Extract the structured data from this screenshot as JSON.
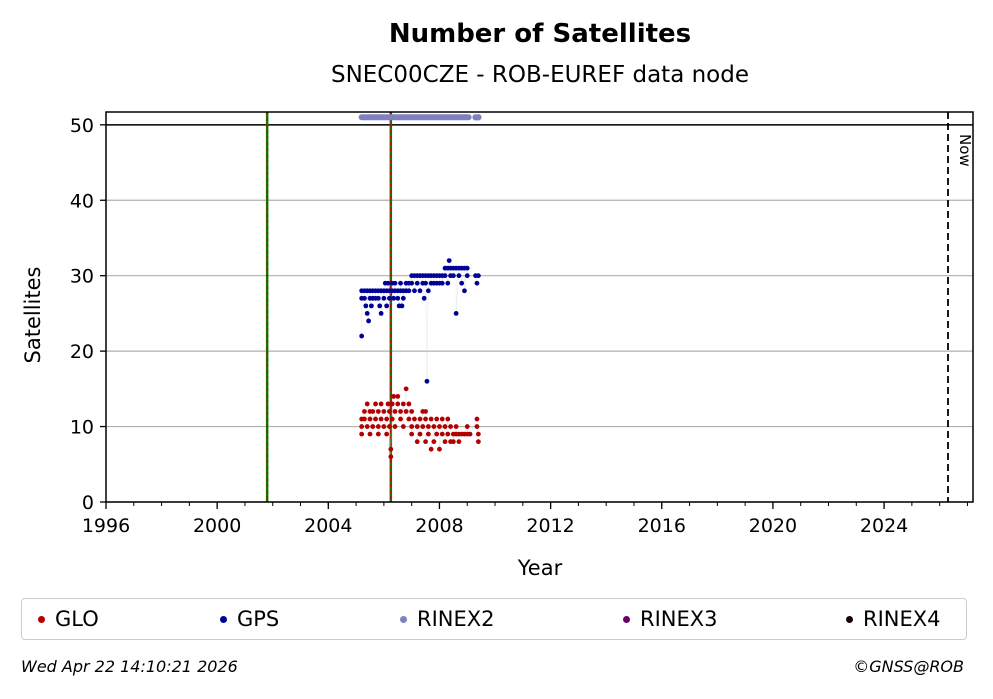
{
  "chart_data": {
    "type": "scatter",
    "title": "Number of Satellites",
    "subtitle": "SNEC00CZE - ROB-EUREF data node",
    "xlabel": "Year",
    "ylabel": "Satellites",
    "xlim": [
      1996,
      2027.2
    ],
    "ylim": [
      0,
      51.7
    ],
    "xticks": [
      1996,
      2000,
      2004,
      2008,
      2012,
      2016,
      2020,
      2024
    ],
    "yticks": [
      0,
      10,
      20,
      30,
      40,
      50
    ],
    "grid": "horizontal",
    "hline_at": 50,
    "event_lines": [
      2001.8,
      2006.25
    ],
    "now_line": {
      "x": 2026.3,
      "label": "Now"
    },
    "series": [
      {
        "name": "GLO",
        "color": "#b30000",
        "points": [
          [
            2005.2,
            11
          ],
          [
            2005.2,
            10
          ],
          [
            2005.2,
            9
          ],
          [
            2005.3,
            12
          ],
          [
            2005.3,
            11
          ],
          [
            2005.4,
            10
          ],
          [
            2005.4,
            13
          ],
          [
            2005.5,
            12
          ],
          [
            2005.5,
            11
          ],
          [
            2005.5,
            9
          ],
          [
            2005.6,
            12
          ],
          [
            2005.6,
            10
          ],
          [
            2005.7,
            13
          ],
          [
            2005.7,
            11
          ],
          [
            2005.8,
            12
          ],
          [
            2005.8,
            10
          ],
          [
            2005.8,
            9
          ],
          [
            2005.9,
            11
          ],
          [
            2005.9,
            13
          ],
          [
            2006.0,
            12
          ],
          [
            2006.0,
            10
          ],
          [
            2006.1,
            11
          ],
          [
            2006.1,
            9
          ],
          [
            2006.15,
            13
          ],
          [
            2006.2,
            12
          ],
          [
            2006.2,
            10
          ],
          [
            2006.25,
            7
          ],
          [
            2006.25,
            6
          ],
          [
            2006.3,
            13
          ],
          [
            2006.3,
            11
          ],
          [
            2006.35,
            14
          ],
          [
            2006.4,
            12
          ],
          [
            2006.4,
            10
          ],
          [
            2006.5,
            14
          ],
          [
            2006.5,
            13
          ],
          [
            2006.6,
            12
          ],
          [
            2006.6,
            11
          ],
          [
            2006.7,
            13
          ],
          [
            2006.7,
            10
          ],
          [
            2006.8,
            15
          ],
          [
            2006.8,
            12
          ],
          [
            2006.9,
            13
          ],
          [
            2006.9,
            11
          ],
          [
            2007.0,
            12
          ],
          [
            2007.0,
            10
          ],
          [
            2007.0,
            9
          ],
          [
            2007.1,
            11
          ],
          [
            2007.2,
            10
          ],
          [
            2007.2,
            8
          ],
          [
            2007.3,
            11
          ],
          [
            2007.3,
            9
          ],
          [
            2007.4,
            12
          ],
          [
            2007.4,
            10
          ],
          [
            2007.5,
            12
          ],
          [
            2007.5,
            11
          ],
          [
            2007.5,
            8
          ],
          [
            2007.6,
            10
          ],
          [
            2007.6,
            9
          ],
          [
            2007.7,
            11
          ],
          [
            2007.7,
            7
          ],
          [
            2007.8,
            10
          ],
          [
            2007.8,
            8
          ],
          [
            2007.9,
            11
          ],
          [
            2007.9,
            9
          ],
          [
            2008.0,
            10
          ],
          [
            2008.0,
            7
          ],
          [
            2008.1,
            11
          ],
          [
            2008.1,
            9
          ],
          [
            2008.2,
            10
          ],
          [
            2008.2,
            8
          ],
          [
            2008.3,
            11
          ],
          [
            2008.3,
            9
          ],
          [
            2008.4,
            10
          ],
          [
            2008.4,
            8
          ],
          [
            2008.5,
            9
          ],
          [
            2008.5,
            8
          ],
          [
            2008.6,
            10
          ],
          [
            2008.6,
            9
          ],
          [
            2008.7,
            9
          ],
          [
            2008.7,
            8
          ],
          [
            2008.8,
            9
          ],
          [
            2008.9,
            9
          ],
          [
            2009.0,
            10
          ],
          [
            2009.0,
            9
          ],
          [
            2009.1,
            9
          ],
          [
            2009.35,
            11
          ],
          [
            2009.35,
            10
          ],
          [
            2009.4,
            9
          ],
          [
            2009.4,
            8
          ]
        ]
      },
      {
        "name": "GPS",
        "color": "#000099",
        "points": [
          [
            2005.2,
            22
          ],
          [
            2005.2,
            28
          ],
          [
            2005.2,
            27
          ],
          [
            2005.3,
            28
          ],
          [
            2005.3,
            27
          ],
          [
            2005.35,
            26
          ],
          [
            2005.4,
            28
          ],
          [
            2005.4,
            25
          ],
          [
            2005.45,
            24
          ],
          [
            2005.5,
            28
          ],
          [
            2005.5,
            27
          ],
          [
            2005.55,
            26
          ],
          [
            2005.6,
            28
          ],
          [
            2005.6,
            27
          ],
          [
            2005.7,
            28
          ],
          [
            2005.7,
            27
          ],
          [
            2005.8,
            28
          ],
          [
            2005.8,
            27
          ],
          [
            2005.85,
            26
          ],
          [
            2005.9,
            28
          ],
          [
            2005.9,
            25
          ],
          [
            2006.0,
            28
          ],
          [
            2006.0,
            27
          ],
          [
            2006.05,
            29
          ],
          [
            2006.1,
            28
          ],
          [
            2006.1,
            26
          ],
          [
            2006.15,
            29
          ],
          [
            2006.2,
            28
          ],
          [
            2006.2,
            27
          ],
          [
            2006.3,
            29
          ],
          [
            2006.3,
            28
          ],
          [
            2006.35,
            27
          ],
          [
            2006.4,
            29
          ],
          [
            2006.4,
            28
          ],
          [
            2006.5,
            28
          ],
          [
            2006.5,
            27
          ],
          [
            2006.55,
            26
          ],
          [
            2006.6,
            29
          ],
          [
            2006.6,
            28
          ],
          [
            2006.65,
            26
          ],
          [
            2006.7,
            28
          ],
          [
            2006.7,
            27
          ],
          [
            2006.8,
            29
          ],
          [
            2006.8,
            28
          ],
          [
            2006.9,
            29
          ],
          [
            2006.9,
            28
          ],
          [
            2007.0,
            30
          ],
          [
            2007.0,
            29
          ],
          [
            2007.1,
            30
          ],
          [
            2007.1,
            28
          ],
          [
            2007.2,
            30
          ],
          [
            2007.2,
            29
          ],
          [
            2007.3,
            30
          ],
          [
            2007.3,
            28
          ],
          [
            2007.4,
            30
          ],
          [
            2007.4,
            29
          ],
          [
            2007.45,
            27
          ],
          [
            2007.5,
            30
          ],
          [
            2007.5,
            29
          ],
          [
            2007.55,
            16
          ],
          [
            2007.6,
            30
          ],
          [
            2007.6,
            28
          ],
          [
            2007.7,
            30
          ],
          [
            2007.7,
            29
          ],
          [
            2007.8,
            30
          ],
          [
            2007.8,
            29
          ],
          [
            2007.9,
            30
          ],
          [
            2007.9,
            29
          ],
          [
            2008.0,
            30
          ],
          [
            2008.0,
            29
          ],
          [
            2008.1,
            30
          ],
          [
            2008.1,
            29
          ],
          [
            2008.2,
            31
          ],
          [
            2008.2,
            30
          ],
          [
            2008.3,
            31
          ],
          [
            2008.3,
            29
          ],
          [
            2008.35,
            32
          ],
          [
            2008.4,
            31
          ],
          [
            2008.4,
            30
          ],
          [
            2008.5,
            31
          ],
          [
            2008.5,
            30
          ],
          [
            2008.6,
            31
          ],
          [
            2008.6,
            25
          ],
          [
            2008.7,
            31
          ],
          [
            2008.7,
            30
          ],
          [
            2008.8,
            31
          ],
          [
            2008.8,
            29
          ],
          [
            2008.9,
            31
          ],
          [
            2008.9,
            28
          ],
          [
            2009.0,
            31
          ],
          [
            2009.0,
            30
          ],
          [
            2009.3,
            30
          ],
          [
            2009.35,
            29
          ],
          [
            2009.4,
            30
          ]
        ]
      },
      {
        "name": "RINEX2",
        "color": "#8080c0",
        "y": 51,
        "ranges": [
          [
            2005.2,
            2009.05
          ]
        ],
        "extra": [
          2009.3,
          2009.4
        ]
      }
    ],
    "legend": [
      {
        "label": "GLO",
        "color": "#b30000"
      },
      {
        "label": "GPS",
        "color": "#000099"
      },
      {
        "label": "RINEX2",
        "color": "#8080c0"
      },
      {
        "label": "RINEX3",
        "color": "#660066"
      },
      {
        "label": "RINEX4",
        "color": "#1a0000"
      }
    ]
  },
  "footer": {
    "timestamp": "Wed Apr 22 14:10:21 2026",
    "credit": "©GNSS@ROB"
  }
}
